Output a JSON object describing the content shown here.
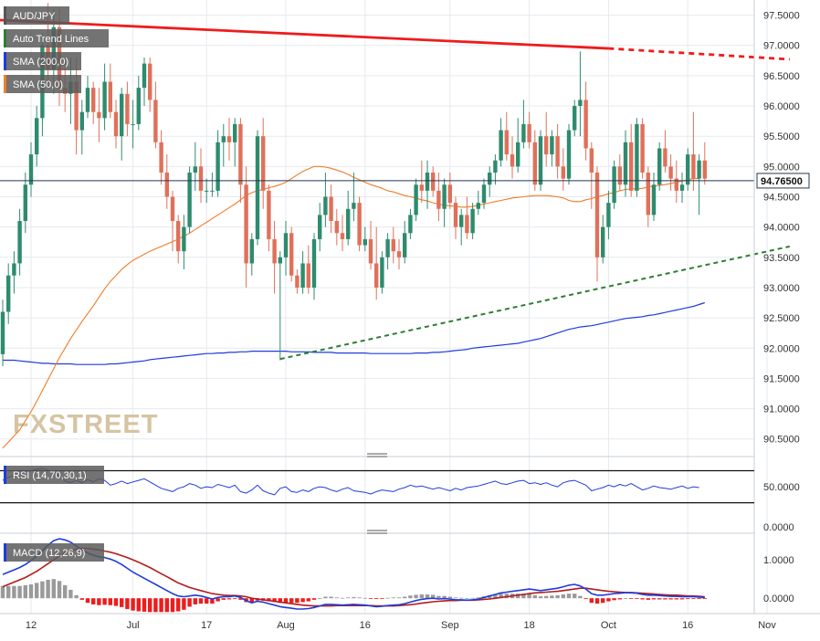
{
  "chart_data": {
    "type": "candlestick",
    "symbol": "AUD/JPY",
    "legend": [
      {
        "label": "AUD/JPY",
        "color": "#555555"
      },
      {
        "label": "Auto Trend Lines",
        "color": "#2e7d32"
      },
      {
        "label": "SMA (200,0)",
        "color": "#1e3cdc"
      },
      {
        "label": "SMA (50,0)",
        "color": "#f07d28"
      }
    ],
    "last_price": 94.765,
    "last_price_label": "94.76500",
    "ylim": [
      90.3,
      97.75
    ],
    "y_ticks": [
      "97.5000",
      "97.0000",
      "96.5000",
      "96.0000",
      "95.5000",
      "95.0000",
      "94.5000",
      "94.0000",
      "93.5000",
      "93.0000",
      "92.5000",
      "92.0000",
      "91.5000",
      "91.0000",
      "90.5000"
    ],
    "x_ticks": [
      "12",
      "Jul",
      "17",
      "Aug",
      "16",
      "Sep",
      "18",
      "Oct",
      "16",
      "Nov"
    ],
    "x_tick_index": [
      5,
      23,
      36,
      50,
      64,
      79,
      93,
      107,
      121,
      135
    ],
    "colors": {
      "up": "#2e8b6e",
      "down": "#e0705a",
      "sma200": "#1e3cdc",
      "sma50": "#f07d28",
      "resistance": "#ee1c1c",
      "support": "#2e7d32",
      "price_line": "#22384f"
    },
    "candles": [
      [
        91.9,
        92.8,
        91.7,
        92.6
      ],
      [
        92.6,
        93.4,
        92.4,
        93.2
      ],
      [
        93.2,
        93.6,
        92.9,
        93.4
      ],
      [
        93.4,
        94.3,
        93.2,
        94.1
      ],
      [
        94.1,
        94.9,
        93.9,
        94.7
      ],
      [
        94.7,
        95.4,
        94.5,
        95.2
      ],
      [
        95.2,
        96.0,
        95.0,
        95.8
      ],
      [
        95.8,
        97.2,
        95.5,
        97.0
      ],
      [
        97.0,
        97.7,
        96.3,
        96.6
      ],
      [
        96.6,
        97.6,
        96.2,
        97.3
      ],
      [
        97.3,
        97.6,
        96.0,
        96.3
      ],
      [
        96.3,
        96.8,
        95.9,
        96.2
      ],
      [
        96.2,
        96.8,
        95.7,
        96.4
      ],
      [
        96.4,
        96.8,
        95.2,
        95.6
      ],
      [
        95.6,
        96.1,
        95.2,
        95.9
      ],
      [
        95.9,
        96.5,
        95.8,
        96.3
      ],
      [
        96.3,
        96.4,
        95.7,
        95.9
      ],
      [
        95.9,
        96.3,
        95.4,
        95.8
      ],
      [
        95.8,
        96.7,
        95.6,
        96.4
      ],
      [
        96.4,
        96.7,
        95.8,
        95.9
      ],
      [
        95.9,
        96.1,
        95.3,
        95.5
      ],
      [
        95.5,
        96.3,
        95.1,
        96.2
      ],
      [
        96.2,
        96.4,
        95.5,
        95.7
      ],
      [
        95.7,
        96.1,
        95.3,
        95.7
      ],
      [
        95.7,
        96.5,
        95.6,
        96.3
      ],
      [
        96.3,
        96.8,
        96.0,
        96.7
      ],
      [
        96.7,
        96.8,
        95.9,
        96.1
      ],
      [
        96.1,
        96.4,
        95.3,
        95.4
      ],
      [
        95.4,
        95.6,
        94.7,
        94.9
      ],
      [
        94.9,
        95.2,
        94.3,
        94.5
      ],
      [
        94.5,
        94.6,
        93.6,
        94.1
      ],
      [
        94.1,
        94.2,
        93.4,
        93.6
      ],
      [
        93.6,
        94.2,
        93.3,
        94.0
      ],
      [
        94.0,
        95.0,
        93.9,
        94.9
      ],
      [
        94.9,
        95.4,
        94.6,
        95.0
      ],
      [
        95.0,
        95.3,
        94.4,
        94.6
      ],
      [
        94.6,
        94.8,
        94.4,
        94.6
      ],
      [
        94.6,
        94.9,
        94.5,
        94.6
      ],
      [
        94.6,
        95.6,
        94.5,
        95.4
      ],
      [
        95.4,
        95.7,
        95.0,
        95.5
      ],
      [
        95.5,
        95.8,
        95.1,
        95.4
      ],
      [
        95.4,
        95.8,
        95.0,
        95.7
      ],
      [
        95.7,
        95.8,
        94.4,
        94.7
      ],
      [
        94.7,
        95.0,
        93.0,
        93.4
      ],
      [
        93.4,
        93.9,
        93.2,
        93.8
      ],
      [
        93.8,
        95.6,
        93.7,
        95.5
      ],
      [
        95.5,
        95.8,
        94.3,
        94.6
      ],
      [
        94.6,
        94.7,
        93.6,
        93.8
      ],
      [
        93.8,
        94.1,
        92.9,
        93.4
      ],
      [
        93.4,
        93.6,
        91.8,
        93.5
      ],
      [
        93.5,
        94.1,
        93.2,
        93.9
      ],
      [
        93.9,
        94.0,
        93.1,
        93.2
      ],
      [
        93.2,
        93.3,
        92.9,
        93.0
      ],
      [
        93.0,
        93.6,
        92.9,
        93.4
      ],
      [
        93.4,
        93.7,
        92.9,
        93.0
      ],
      [
        93.0,
        93.9,
        92.8,
        93.8
      ],
      [
        93.8,
        94.4,
        93.6,
        94.2
      ],
      [
        94.2,
        94.9,
        94.0,
        94.5
      ],
      [
        94.5,
        94.7,
        93.9,
        94.1
      ],
      [
        94.1,
        94.3,
        93.7,
        93.9
      ],
      [
        93.9,
        94.2,
        93.6,
        93.8
      ],
      [
        93.8,
        94.6,
        93.7,
        94.3
      ],
      [
        94.3,
        94.9,
        94.1,
        94.4
      ],
      [
        94.4,
        94.5,
        93.6,
        93.7
      ],
      [
        93.7,
        94.0,
        93.6,
        93.8
      ],
      [
        93.8,
        94.1,
        93.3,
        93.4
      ],
      [
        93.4,
        94.0,
        92.8,
        93.0
      ],
      [
        93.0,
        93.6,
        92.9,
        93.5
      ],
      [
        93.5,
        93.9,
        93.3,
        93.8
      ],
      [
        93.8,
        94.0,
        93.4,
        93.6
      ],
      [
        93.6,
        93.8,
        93.3,
        93.5
      ],
      [
        93.5,
        94.1,
        93.4,
        93.9
      ],
      [
        93.9,
        94.3,
        93.8,
        94.2
      ],
      [
        94.2,
        94.8,
        94.1,
        94.7
      ],
      [
        94.7,
        95.1,
        94.4,
        94.6
      ],
      [
        94.6,
        95.1,
        94.3,
        94.9
      ],
      [
        94.9,
        95.0,
        94.5,
        94.6
      ],
      [
        94.6,
        94.9,
        94.1,
        94.3
      ],
      [
        94.3,
        94.8,
        94.0,
        94.7
      ],
      [
        94.7,
        94.9,
        94.3,
        94.4
      ],
      [
        94.4,
        94.5,
        93.8,
        94.0
      ],
      [
        94.0,
        94.3,
        93.7,
        94.2
      ],
      [
        94.2,
        94.5,
        93.8,
        93.9
      ],
      [
        93.9,
        94.4,
        93.8,
        94.3
      ],
      [
        94.3,
        94.6,
        94.2,
        94.4
      ],
      [
        94.4,
        94.8,
        94.3,
        94.7
      ],
      [
        94.7,
        95.0,
        94.5,
        94.9
      ],
      [
        94.9,
        95.2,
        94.7,
        95.1
      ],
      [
        95.1,
        95.8,
        95.0,
        95.6
      ],
      [
        95.6,
        95.9,
        95.1,
        95.2
      ],
      [
        95.2,
        95.5,
        94.8,
        95.0
      ],
      [
        95.0,
        95.8,
        94.9,
        95.4
      ],
      [
        95.4,
        96.1,
        95.3,
        95.7
      ],
      [
        95.7,
        95.9,
        95.3,
        95.4
      ],
      [
        95.4,
        95.6,
        94.6,
        94.7
      ],
      [
        94.7,
        95.6,
        94.6,
        95.5
      ],
      [
        95.5,
        95.9,
        95.0,
        95.2
      ],
      [
        95.2,
        95.6,
        95.0,
        95.5
      ],
      [
        95.5,
        95.7,
        94.8,
        95.0
      ],
      [
        95.0,
        95.3,
        94.6,
        94.8
      ],
      [
        94.8,
        95.7,
        94.7,
        95.6
      ],
      [
        95.6,
        96.1,
        95.5,
        96.0
      ],
      [
        96.0,
        96.9,
        95.5,
        96.1
      ],
      [
        96.1,
        96.4,
        95.1,
        95.3
      ],
      [
        95.3,
        95.4,
        94.3,
        94.9
      ],
      [
        94.9,
        95.0,
        93.1,
        93.5
      ],
      [
        93.5,
        94.2,
        93.4,
        94.0
      ],
      [
        94.0,
        94.6,
        93.8,
        94.4
      ],
      [
        94.4,
        95.1,
        94.3,
        95.0
      ],
      [
        95.0,
        95.2,
        94.6,
        94.7
      ],
      [
        94.7,
        95.6,
        94.5,
        95.4
      ],
      [
        95.4,
        95.7,
        94.5,
        94.6
      ],
      [
        94.6,
        95.8,
        94.5,
        95.7
      ],
      [
        95.7,
        95.8,
        94.8,
        94.9
      ],
      [
        94.9,
        95.0,
        94.0,
        94.2
      ],
      [
        94.2,
        94.9,
        94.1,
        94.7
      ],
      [
        94.7,
        95.4,
        94.6,
        95.3
      ],
      [
        95.3,
        95.6,
        94.9,
        95.0
      ],
      [
        95.0,
        95.2,
        94.6,
        94.8
      ],
      [
        94.8,
        95.1,
        94.4,
        94.6
      ],
      [
        94.6,
        94.9,
        94.4,
        94.7
      ],
      [
        94.7,
        95.3,
        94.6,
        95.2
      ],
      [
        95.2,
        95.9,
        94.6,
        94.8
      ],
      [
        94.8,
        95.2,
        94.2,
        95.1
      ],
      [
        95.1,
        95.4,
        94.7,
        94.8
      ]
    ],
    "sma200": [
      91.8,
      91.8,
      91.8,
      91.79,
      91.78,
      91.77,
      91.76,
      91.75,
      91.75,
      91.74,
      91.74,
      91.74,
      91.74,
      91.73,
      91.73,
      91.73,
      91.73,
      91.73,
      91.73,
      91.74,
      91.74,
      91.75,
      91.76,
      91.77,
      91.78,
      91.79,
      91.81,
      91.82,
      91.83,
      91.84,
      91.85,
      91.86,
      91.87,
      91.88,
      91.89,
      91.9,
      91.91,
      91.91,
      91.92,
      91.92,
      91.93,
      91.93,
      91.94,
      91.94,
      91.95,
      91.95,
      91.95,
      91.95,
      91.95,
      91.95,
      91.95,
      91.94,
      91.94,
      91.94,
      91.94,
      91.93,
      91.93,
      91.93,
      91.93,
      91.92,
      91.92,
      91.92,
      91.92,
      91.92,
      91.92,
      91.91,
      91.91,
      91.91,
      91.91,
      91.91,
      91.91,
      91.91,
      91.91,
      91.92,
      91.92,
      91.92,
      91.93,
      91.93,
      91.94,
      91.95,
      91.96,
      91.97,
      91.98,
      92.0,
      92.01,
      92.02,
      92.03,
      92.04,
      92.05,
      92.06,
      92.07,
      92.08,
      92.1,
      92.12,
      92.14,
      92.16,
      92.19,
      92.22,
      92.25,
      92.28,
      92.31,
      92.33,
      92.35,
      92.36,
      92.37,
      92.39,
      92.41,
      92.43,
      92.45,
      92.47,
      92.49,
      92.5,
      92.51,
      92.52,
      92.54,
      92.55,
      92.57,
      92.59,
      92.61,
      92.63,
      92.65,
      92.67,
      92.69,
      92.72,
      92.75
    ],
    "sma50": [
      90.35,
      90.45,
      90.55,
      90.65,
      90.8,
      90.95,
      91.12,
      91.3,
      91.48,
      91.66,
      91.84,
      92.0,
      92.16,
      92.3,
      92.44,
      92.57,
      92.7,
      92.84,
      92.98,
      93.1,
      93.2,
      93.3,
      93.38,
      93.45,
      93.5,
      93.55,
      93.6,
      93.64,
      93.68,
      93.72,
      93.76,
      93.8,
      93.85,
      93.9,
      93.96,
      94.02,
      94.08,
      94.14,
      94.2,
      94.26,
      94.32,
      94.38,
      94.45,
      94.52,
      94.57,
      94.6,
      94.62,
      94.65,
      94.67,
      94.7,
      94.74,
      94.8,
      94.86,
      94.92,
      94.96,
      95.0,
      95.0,
      94.99,
      94.97,
      94.94,
      94.91,
      94.87,
      94.82,
      94.78,
      94.74,
      94.7,
      94.67,
      94.64,
      94.6,
      94.58,
      94.55,
      94.52,
      94.5,
      94.48,
      94.45,
      94.43,
      94.4,
      94.38,
      94.36,
      94.35,
      94.34,
      94.33,
      94.33,
      94.34,
      94.36,
      94.38,
      94.4,
      94.42,
      94.44,
      94.46,
      94.48,
      94.49,
      94.5,
      94.51,
      94.52,
      94.52,
      94.52,
      94.51,
      94.5,
      94.48,
      94.44,
      94.42,
      94.42,
      94.45,
      94.47,
      94.5,
      94.52,
      94.55,
      94.57,
      94.6,
      94.62,
      94.63,
      94.63,
      94.64,
      94.66,
      94.68,
      94.69,
      94.7,
      94.72,
      94.74,
      94.76,
      94.78,
      94.8,
      94.8
    ],
    "resistance": {
      "from": [
        -1,
        97.42
      ],
      "to": [
        107,
        96.95
      ],
      "projection_to": [
        139,
        96.77
      ]
    },
    "support": {
      "from": [
        49,
        91.82
      ],
      "to": [
        107,
        93.02
      ],
      "projection_to": [
        139,
        93.68
      ]
    },
    "rsi": {
      "label": "RSI (14,70,30,1)",
      "ylim": [
        -8,
        82
      ],
      "levels": [
        70,
        30
      ],
      "y_ticks": [
        "50.0000",
        "0.0000"
      ],
      "y_tick_values": [
        50,
        0
      ],
      "values": [
        58,
        62,
        64,
        66,
        68,
        70,
        72,
        73,
        71,
        69,
        63,
        57,
        55,
        58,
        55,
        59,
        56,
        60,
        58,
        52,
        54,
        57,
        54,
        56,
        58,
        60,
        56,
        52,
        48,
        46,
        44,
        48,
        50,
        54,
        52,
        48,
        50,
        49,
        53,
        51,
        49,
        52,
        44,
        42,
        46,
        52,
        45,
        42,
        40,
        48,
        50,
        44,
        43,
        46,
        44,
        48,
        50,
        49,
        46,
        44,
        47,
        49,
        45,
        44,
        43,
        41,
        44,
        46,
        45,
        44,
        47,
        49,
        52,
        50,
        51,
        49,
        47,
        49,
        47,
        45,
        48,
        46,
        49,
        50,
        51,
        53,
        55,
        57,
        54,
        53,
        55,
        57,
        58,
        54,
        55,
        53,
        55,
        52,
        50,
        55,
        57,
        58,
        55,
        52,
        45,
        47,
        49,
        52,
        50,
        53,
        51,
        54,
        50,
        46,
        48,
        51,
        49,
        48,
        47,
        49,
        51,
        48,
        50,
        49
      ]
    },
    "macd": {
      "label": "MACD (12,26,9)",
      "ylim": [
        -0.4,
        1.55
      ],
      "y_ticks": [
        "1.0000",
        "0.0000"
      ],
      "y_tick_values": [
        1,
        0
      ],
      "macd": [
        0.62,
        0.68,
        0.74,
        0.8,
        0.88,
        0.98,
        1.1,
        1.24,
        1.38,
        1.5,
        1.55,
        1.52,
        1.46,
        1.36,
        1.26,
        1.18,
        1.12,
        1.08,
        1.06,
        1.02,
        0.96,
        0.88,
        0.78,
        0.68,
        0.6,
        0.52,
        0.44,
        0.36,
        0.28,
        0.2,
        0.12,
        0.06,
        0.04,
        0.06,
        0.08,
        0.06,
        0.02,
        -0.02,
        0.02,
        0.04,
        0.04,
        0.06,
        0.02,
        -0.06,
        -0.12,
        -0.08,
        -0.1,
        -0.14,
        -0.18,
        -0.22,
        -0.24,
        -0.26,
        -0.28,
        -0.28,
        -0.27,
        -0.24,
        -0.2,
        -0.16,
        -0.16,
        -0.17,
        -0.18,
        -0.17,
        -0.16,
        -0.17,
        -0.18,
        -0.2,
        -0.22,
        -0.21,
        -0.19,
        -0.18,
        -0.17,
        -0.14,
        -0.1,
        -0.06,
        -0.03,
        -0.01,
        0.0,
        -0.02,
        -0.01,
        -0.02,
        -0.04,
        -0.04,
        -0.05,
        -0.04,
        -0.02,
        0.02,
        0.06,
        0.1,
        0.14,
        0.16,
        0.18,
        0.2,
        0.22,
        0.24,
        0.22,
        0.2,
        0.22,
        0.24,
        0.26,
        0.3,
        0.34,
        0.36,
        0.32,
        0.24,
        0.12,
        0.08,
        0.08,
        0.1,
        0.12,
        0.13,
        0.15,
        0.14,
        0.13,
        0.1,
        0.08,
        0.08,
        0.07,
        0.06,
        0.05,
        0.05,
        0.04,
        0.04,
        0.04,
        0.03,
        0.02
      ],
      "signal": [
        0.3,
        0.36,
        0.42,
        0.48,
        0.54,
        0.62,
        0.7,
        0.8,
        0.9,
        1.0,
        1.1,
        1.18,
        1.24,
        1.28,
        1.3,
        1.3,
        1.28,
        1.26,
        1.23,
        1.2,
        1.16,
        1.11,
        1.06,
        1.0,
        0.94,
        0.87,
        0.8,
        0.72,
        0.64,
        0.56,
        0.48,
        0.4,
        0.34,
        0.28,
        0.24,
        0.2,
        0.16,
        0.12,
        0.1,
        0.08,
        0.07,
        0.07,
        0.06,
        0.04,
        0.0,
        -0.02,
        -0.04,
        -0.06,
        -0.08,
        -0.1,
        -0.12,
        -0.14,
        -0.16,
        -0.18,
        -0.19,
        -0.2,
        -0.2,
        -0.2,
        -0.2,
        -0.19,
        -0.19,
        -0.19,
        -0.19,
        -0.19,
        -0.19,
        -0.19,
        -0.2,
        -0.2,
        -0.2,
        -0.2,
        -0.19,
        -0.18,
        -0.17,
        -0.15,
        -0.13,
        -0.11,
        -0.09,
        -0.08,
        -0.07,
        -0.06,
        -0.06,
        -0.05,
        -0.05,
        -0.05,
        -0.04,
        -0.03,
        -0.02,
        0.0,
        0.02,
        0.04,
        0.06,
        0.08,
        0.1,
        0.12,
        0.14,
        0.15,
        0.16,
        0.17,
        0.18,
        0.2,
        0.22,
        0.24,
        0.26,
        0.26,
        0.24,
        0.22,
        0.2,
        0.18,
        0.17,
        0.16,
        0.15,
        0.15,
        0.14,
        0.13,
        0.12,
        0.11,
        0.1,
        0.09,
        0.08,
        0.08,
        0.07,
        0.06,
        0.06,
        0.05,
        0.04
      ]
    }
  }
}
